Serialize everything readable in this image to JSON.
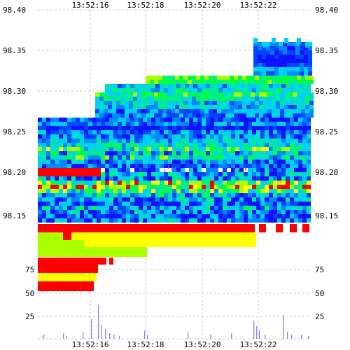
{
  "chart_data": {
    "type": "heatmap",
    "time_ticks": [
      "13:52:16",
      "13:52:18",
      "13:52:20",
      "13:52:22"
    ],
    "price_axis": {
      "ticks": [
        "98.40",
        "98.35",
        "98.30",
        "98.25",
        "98.20",
        "98.15"
      ],
      "range": [
        98.14,
        98.4
      ]
    },
    "size_axis": {
      "ticks": [
        "75",
        "50",
        "25"
      ],
      "range": [
        0,
        100
      ]
    },
    "palette": [
      "#ff0000",
      "#ffff00",
      "#aaff00",
      "#00ff44",
      "#00ee88",
      "#00ddcc",
      "#00ccff",
      "#0088ff",
      "#0044ff",
      "#1111ff"
    ],
    "grid": true
  }
}
